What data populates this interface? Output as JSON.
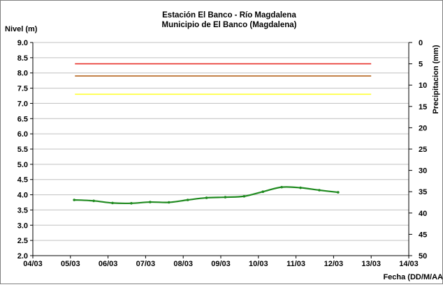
{
  "chart_data": {
    "type": "line",
    "title": "Estación El Banco - Río Magdalena",
    "subtitle": "Municipio de El Banco (Magdalena)",
    "ylabel": "Nivel (m)",
    "y2label": "Precipitacion (mm)",
    "xlabel": "Fecha (DD/M/AA",
    "x_tick_labels": [
      "04/03",
      "05/03",
      "06/03",
      "07/03",
      "08/03",
      "09/03",
      "10/03",
      "11/03",
      "12/03",
      "13/03",
      "14/03"
    ],
    "y_tick_labels": [
      "2.0",
      "2.5",
      "3.0",
      "3.5",
      "4.0",
      "4.5",
      "5.0",
      "5.5",
      "6.0",
      "6.5",
      "7.0",
      "7.5",
      "8.0",
      "8.5",
      "9.0"
    ],
    "y2_tick_labels": [
      "0",
      "5",
      "10",
      "15",
      "20",
      "25",
      "30",
      "35",
      "40",
      "45",
      "50"
    ],
    "xlim": [
      0,
      10
    ],
    "ylim": [
      2.0,
      9.0
    ],
    "y2lim": [
      0,
      50
    ],
    "y2_inverted": true,
    "grid": "horizontal",
    "legend": "none",
    "thresholds": [
      {
        "value": 8.3,
        "color": "#e8302a"
      },
      {
        "value": 7.9,
        "color": "#b5651d"
      },
      {
        "value": 7.3,
        "color": "#ffff33"
      }
    ],
    "threshold_x_range": [
      1.12,
      9.0
    ],
    "series": [
      {
        "color": "#1f8a1f",
        "x": [
          1.1,
          1.62,
          2.12,
          2.62,
          3.12,
          3.62,
          4.12,
          4.62,
          5.12,
          5.62,
          6.12,
          6.62,
          7.12,
          7.62,
          8.12
        ],
        "y": [
          3.83,
          3.8,
          3.73,
          3.72,
          3.76,
          3.75,
          3.83,
          3.9,
          3.92,
          3.95,
          4.1,
          4.25,
          4.23,
          4.15,
          4.08
        ]
      }
    ]
  }
}
